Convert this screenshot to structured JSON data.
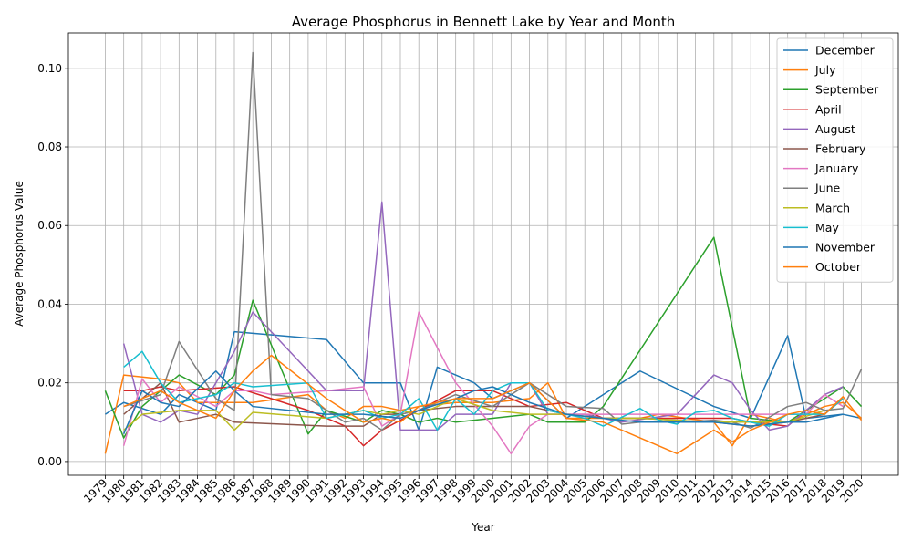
{
  "chart_data": {
    "type": "line",
    "title": "Average Phosphorus in Bennett Lake by Year and Month",
    "xlabel": "Year",
    "ylabel": "Average Phosphorus Value",
    "xlim": [
      1977.0,
      2022.0
    ],
    "ylim": [
      -0.0035,
      0.109
    ],
    "x_tick_labels": [
      "1979",
      "1980",
      "1981",
      "1982",
      "1983",
      "1984",
      "1985",
      "1986",
      "1987",
      "1988",
      "1989",
      "1990",
      "1991",
      "1992",
      "1993",
      "1994",
      "1995",
      "1996",
      "1997",
      "1998",
      "1999",
      "2000",
      "2001",
      "2002",
      "2003",
      "2004",
      "2005",
      "2006",
      "2007",
      "2008",
      "2009",
      "2010",
      "2011",
      "2012",
      "2013",
      "2014",
      "2015",
      "2016",
      "2017",
      "2018",
      "2019",
      "2020"
    ],
    "y_ticks": [
      0.0,
      0.02,
      0.04,
      0.06,
      0.08,
      0.1
    ],
    "y_tick_labels": [
      "0.00",
      "0.02",
      "0.04",
      "0.06",
      "0.08",
      "0.10"
    ],
    "grid": true,
    "legend_position": "top-right",
    "series": [
      {
        "name": "December",
        "color": "#1f77b4",
        "x": [
          1979,
          1980,
          1982,
          1983,
          1985,
          1986,
          1991,
          1993,
          1995,
          1996,
          1997,
          1999,
          2000,
          2002,
          2004,
          2008,
          2012,
          2014,
          2016,
          2017,
          2019,
          2020
        ],
        "y": [
          0.012,
          0.015,
          0.012,
          0.017,
          0.013,
          0.033,
          0.031,
          0.02,
          0.02,
          0.008,
          0.024,
          0.02,
          0.016,
          0.02,
          0.011,
          0.023,
          0.014,
          0.011,
          0.032,
          0.011,
          0.012,
          0.011
        ]
      },
      {
        "name": "July",
        "color": "#ff7f0e",
        "x": [
          1979,
          1980,
          1982,
          1983,
          1984,
          1985,
          1986,
          1987,
          1990,
          1991,
          1992,
          1993,
          1994,
          1995,
          1996,
          1998,
          2000,
          2002,
          2003,
          2004,
          2008,
          2009,
          2012,
          2013,
          2014,
          2015,
          2016,
          2017,
          2018,
          2019,
          2020
        ],
        "y": [
          0.002,
          0.022,
          0.021,
          0.02,
          0.015,
          0.015,
          0.015,
          0.015,
          0.017,
          0.013,
          0.011,
          0.014,
          0.014,
          0.013,
          0.014,
          0.015,
          0.015,
          0.016,
          0.02,
          0.011,
          0.011,
          0.012,
          0.01,
          0.004,
          0.012,
          0.011,
          0.01,
          0.012,
          0.014,
          0.015,
          0.011
        ]
      },
      {
        "name": "September",
        "color": "#2ca02c",
        "x": [
          1979,
          1980,
          1981,
          1982,
          1983,
          1985,
          1986,
          1987,
          1990,
          1991,
          1993,
          1994,
          1995,
          1996,
          1997,
          1998,
          2000,
          2002,
          2003,
          2005,
          2006,
          2012,
          2014,
          2016,
          2017,
          2019,
          2020
        ],
        "y": [
          0.018,
          0.006,
          0.014,
          0.018,
          0.022,
          0.017,
          0.022,
          0.041,
          0.007,
          0.013,
          0.01,
          0.013,
          0.012,
          0.01,
          0.011,
          0.01,
          0.011,
          0.012,
          0.01,
          0.01,
          0.014,
          0.057,
          0.011,
          0.01,
          0.013,
          0.019,
          0.014
        ]
      },
      {
        "name": "April",
        "color": "#d62728",
        "x": [
          1980,
          1981,
          1982,
          1983,
          1986,
          1990,
          1992,
          1993,
          1994,
          1996,
          1998,
          2000,
          2002,
          2004,
          2006,
          2008,
          2012,
          2013,
          2014,
          2016,
          2017,
          2018,
          2019
        ],
        "y": [
          0.018,
          0.018,
          0.019,
          0.018,
          0.019,
          0.013,
          0.009,
          0.004,
          0.008,
          0.013,
          0.018,
          0.018,
          0.014,
          0.015,
          0.011,
          0.011,
          0.011,
          0.011,
          0.01,
          0.009,
          0.013,
          0.012,
          0.016
        ]
      },
      {
        "name": "August",
        "color": "#9467bd",
        "x": [
          1980,
          1981,
          1982,
          1983,
          1984,
          1986,
          1987,
          1991,
          1993,
          1994,
          1995,
          1996,
          1997,
          1998,
          2000,
          2001,
          2002,
          2003,
          2005,
          2006,
          2007,
          2010,
          2012,
          2013,
          2014,
          2015,
          2016,
          2017,
          2018,
          2019
        ],
        "y": [
          0.03,
          0.012,
          0.01,
          0.013,
          0.012,
          0.028,
          0.038,
          0.018,
          0.018,
          0.066,
          0.008,
          0.008,
          0.008,
          0.012,
          0.012,
          0.02,
          0.02,
          0.012,
          0.012,
          0.011,
          0.01,
          0.012,
          0.022,
          0.02,
          0.013,
          0.008,
          0.009,
          0.013,
          0.017,
          0.019
        ]
      },
      {
        "name": "February",
        "color": "#8c564b",
        "x": [
          1980,
          1982,
          1983,
          1985,
          1986,
          1991,
          1993,
          1994,
          1995,
          1996,
          1998,
          2002,
          2004,
          2006,
          2008,
          2012,
          2014,
          2016,
          2018
        ],
        "y": [
          0.012,
          0.02,
          0.01,
          0.012,
          0.01,
          0.009,
          0.009,
          0.012,
          0.012,
          0.013,
          0.014,
          0.014,
          0.012,
          0.011,
          0.011,
          0.01,
          0.009,
          0.01,
          0.012
        ]
      },
      {
        "name": "January",
        "color": "#e377c2",
        "x": [
          1980,
          1981,
          1982,
          1983,
          1985,
          1986,
          1987,
          1988,
          1991,
          1993,
          1994,
          1995,
          1996,
          1998,
          2000,
          2001,
          2002,
          2003,
          2017,
          2018,
          2019
        ],
        "y": [
          0.004,
          0.021,
          0.015,
          0.019,
          0.014,
          0.018,
          0.018,
          0.017,
          0.018,
          0.019,
          0.009,
          0.012,
          0.038,
          0.02,
          0.009,
          0.002,
          0.009,
          0.012,
          0.012,
          0.017,
          0.014
        ]
      },
      {
        "name": "June",
        "color": "#7f7f7f",
        "x": [
          1980,
          1982,
          1983,
          1985,
          1986,
          1987,
          1988,
          1990,
          1991,
          1992,
          1993,
          1994,
          1995,
          1996,
          1997,
          1998,
          2000,
          2002,
          2004,
          2006,
          2007,
          2008,
          2010,
          2012,
          2013,
          2014,
          2016,
          2017,
          2018,
          2019,
          2020
        ],
        "y": [
          0.014,
          0.017,
          0.0305,
          0.016,
          0.013,
          0.104,
          0.017,
          0.016,
          0.013,
          0.01,
          0.011,
          0.008,
          0.012,
          0.013,
          0.015,
          0.017,
          0.014,
          0.02,
          0.014,
          0.0135,
          0.0095,
          0.01,
          0.01,
          0.0105,
          0.01,
          0.0085,
          0.014,
          0.015,
          0.013,
          0.0135,
          0.0235
        ]
      },
      {
        "name": "March",
        "color": "#bcbd22",
        "x": [
          1980,
          1981,
          1983,
          1985,
          1986,
          1987,
          1991,
          1993,
          1994,
          1995,
          1996,
          1998,
          2000,
          2002,
          2004,
          2006,
          2008,
          2012,
          2014,
          2016,
          2018
        ],
        "y": [
          0.008,
          0.012,
          0.013,
          0.013,
          0.008,
          0.0125,
          0.011,
          0.013,
          0.012,
          0.013,
          0.012,
          0.016,
          0.013,
          0.012,
          0.012,
          0.011,
          0.011,
          0.01,
          0.01,
          0.01,
          0.013
        ]
      },
      {
        "name": "May",
        "color": "#17becf",
        "x": [
          1980,
          1981,
          1982,
          1983,
          1985,
          1986,
          1987,
          1990,
          1991,
          1993,
          1994,
          1995,
          1996,
          1997,
          1998,
          1999,
          2000,
          2001,
          2002,
          2003,
          2004,
          2005,
          2006,
          2008,
          2009,
          2010,
          2011,
          2012,
          2013,
          2015,
          2016,
          2017,
          2018,
          2019
        ],
        "y": [
          0.024,
          0.028,
          0.02,
          0.015,
          0.017,
          0.02,
          0.019,
          0.02,
          0.011,
          0.013,
          0.011,
          0.012,
          0.016,
          0.008,
          0.016,
          0.012,
          0.018,
          0.02,
          0.02,
          0.013,
          0.012,
          0.011,
          0.009,
          0.0135,
          0.0105,
          0.0095,
          0.0125,
          0.013,
          0.011,
          0.009,
          0.012,
          0.012,
          0.012,
          0.016
        ]
      },
      {
        "name": "November",
        "color": "#1f77b4",
        "x": [
          1980,
          1981,
          1982,
          1983,
          1985,
          1986,
          1987,
          1991,
          1993,
          1995,
          1996,
          1998,
          1999,
          2000,
          2002,
          2004,
          2006,
          2008,
          2010,
          2012,
          2014,
          2016,
          2017,
          2018,
          2019
        ],
        "y": [
          0.007,
          0.018,
          0.015,
          0.014,
          0.023,
          0.018,
          0.014,
          0.012,
          0.012,
          0.011,
          0.013,
          0.016,
          0.018,
          0.019,
          0.015,
          0.012,
          0.011,
          0.01,
          0.01,
          0.01,
          0.009,
          0.01,
          0.01,
          0.011,
          0.012
        ]
      },
      {
        "name": "October",
        "color": "#ff7f0e",
        "x": [
          1980,
          1982,
          1983,
          1985,
          1986,
          1987,
          1988,
          1991,
          1993,
          1994,
          1995,
          1996,
          1998,
          2000,
          2002,
          2004,
          2006,
          2008,
          2010,
          2012,
          2013,
          2014,
          2016,
          2017,
          2018,
          2019,
          2020
        ],
        "y": [
          0.014,
          0.018,
          0.015,
          0.011,
          0.018,
          0.023,
          0.027,
          0.016,
          0.01,
          0.011,
          0.01,
          0.014,
          0.016,
          0.016,
          0.02,
          0.011,
          0.01,
          0.006,
          0.002,
          0.008,
          0.005,
          0.008,
          0.012,
          0.013,
          0.012,
          0.0165,
          0.0105
        ]
      }
    ]
  }
}
